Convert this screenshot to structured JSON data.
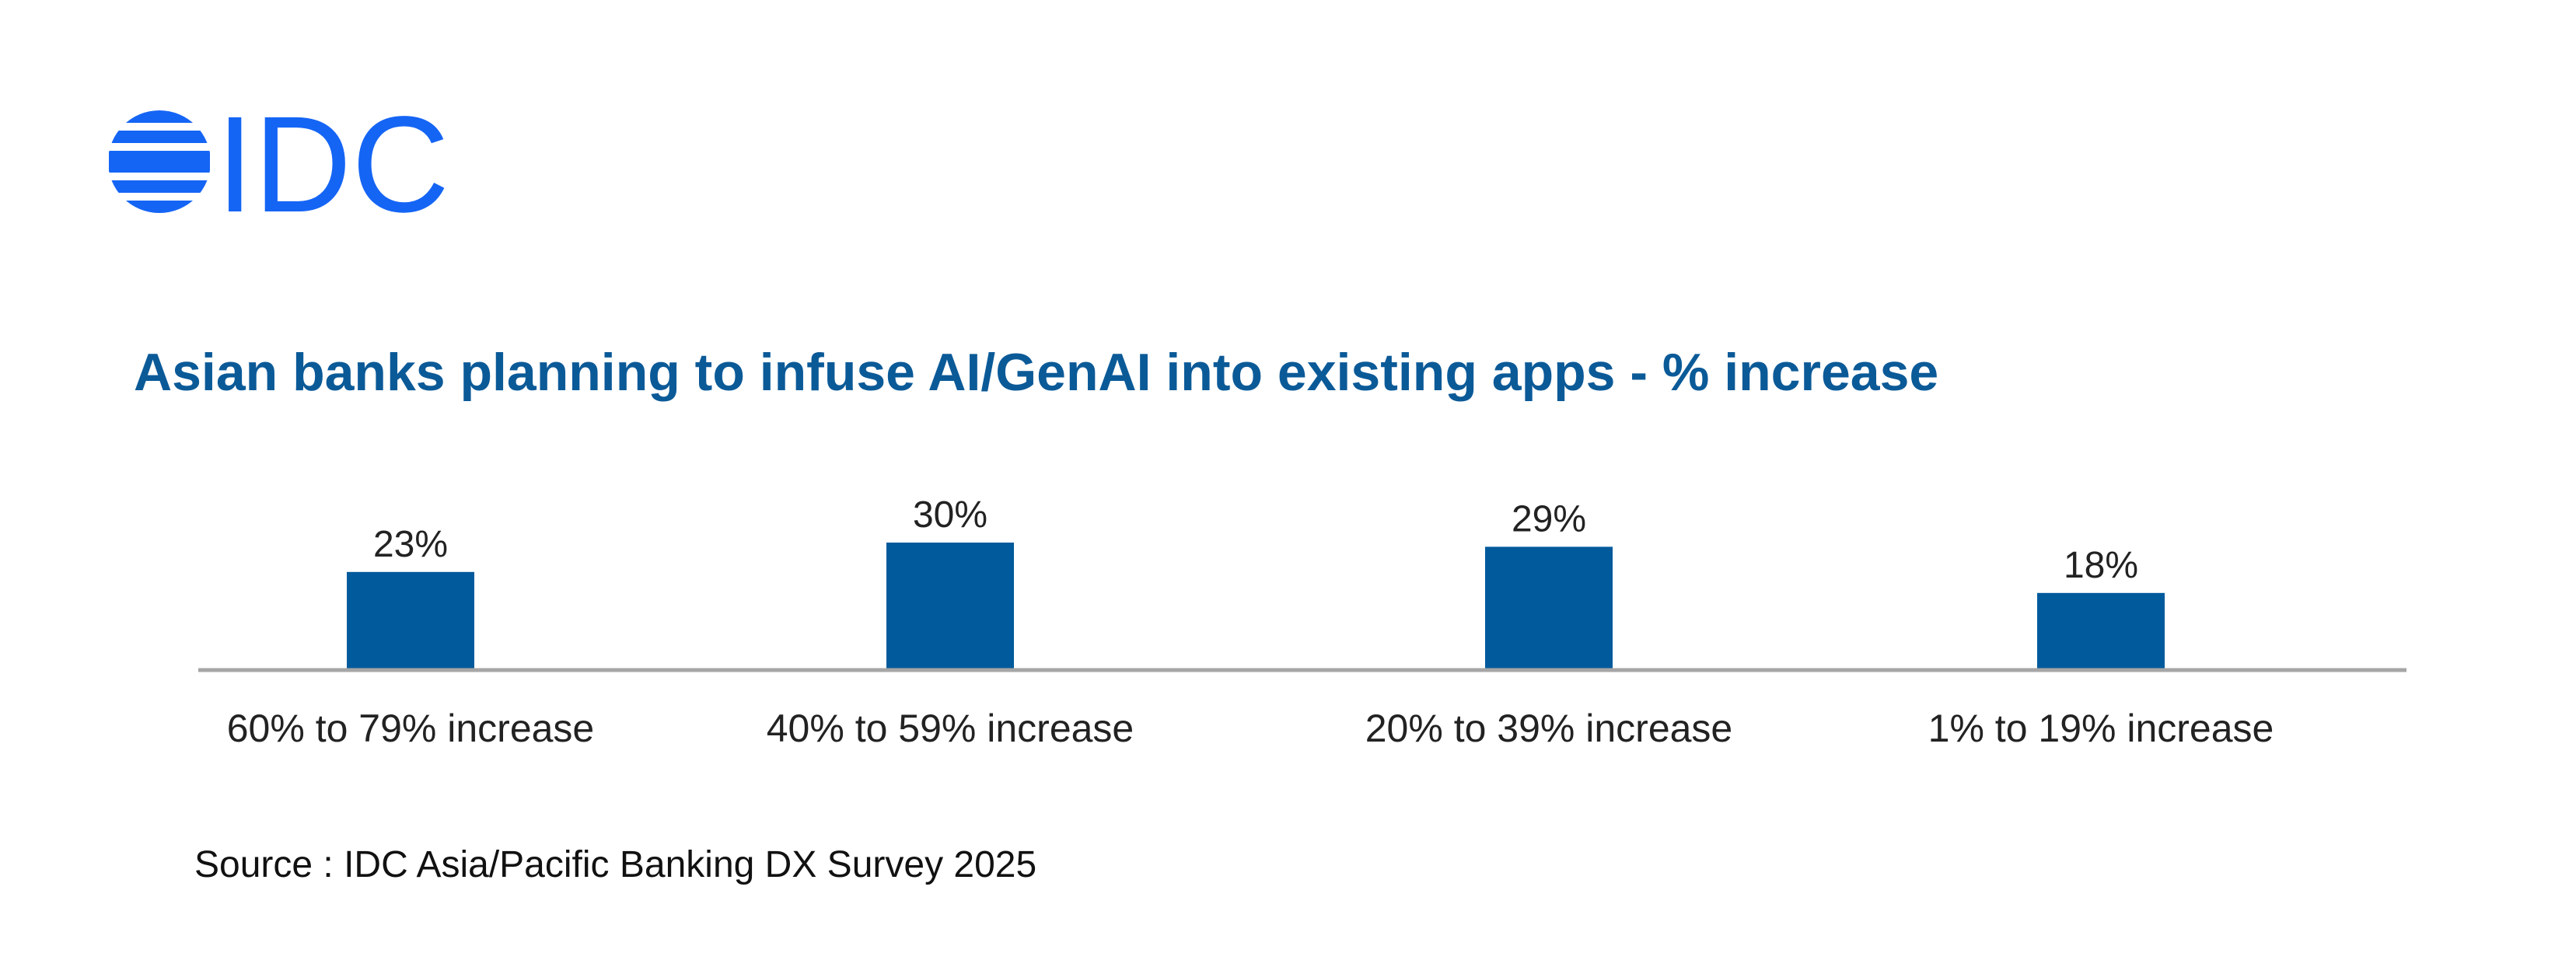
{
  "brand": {
    "logo_text": "IDC",
    "logo_icon": "striped-globe-icon",
    "logo_color": "#1565f5"
  },
  "colors": {
    "title": "#0b5a98",
    "bar": "#005a9c",
    "axis": "#a6a6a6",
    "text": "#222222"
  },
  "chart_data": {
    "type": "bar",
    "title": "Asian banks planning to infuse AI/GenAI into existing apps - % increase",
    "categories": [
      "60% to 79% increase",
      "40% to 59% increase",
      "20% to 39% increase",
      "1% to 19% increase"
    ],
    "values": [
      23,
      30,
      29,
      18
    ],
    "value_labels": [
      "23%",
      "30%",
      "29%",
      "18%"
    ],
    "unit": "%",
    "ylim": [
      0,
      30
    ],
    "grid": false,
    "legend": "none"
  },
  "footer": {
    "source": "Source : IDC Asia/Pacific Banking DX Survey 2025"
  }
}
